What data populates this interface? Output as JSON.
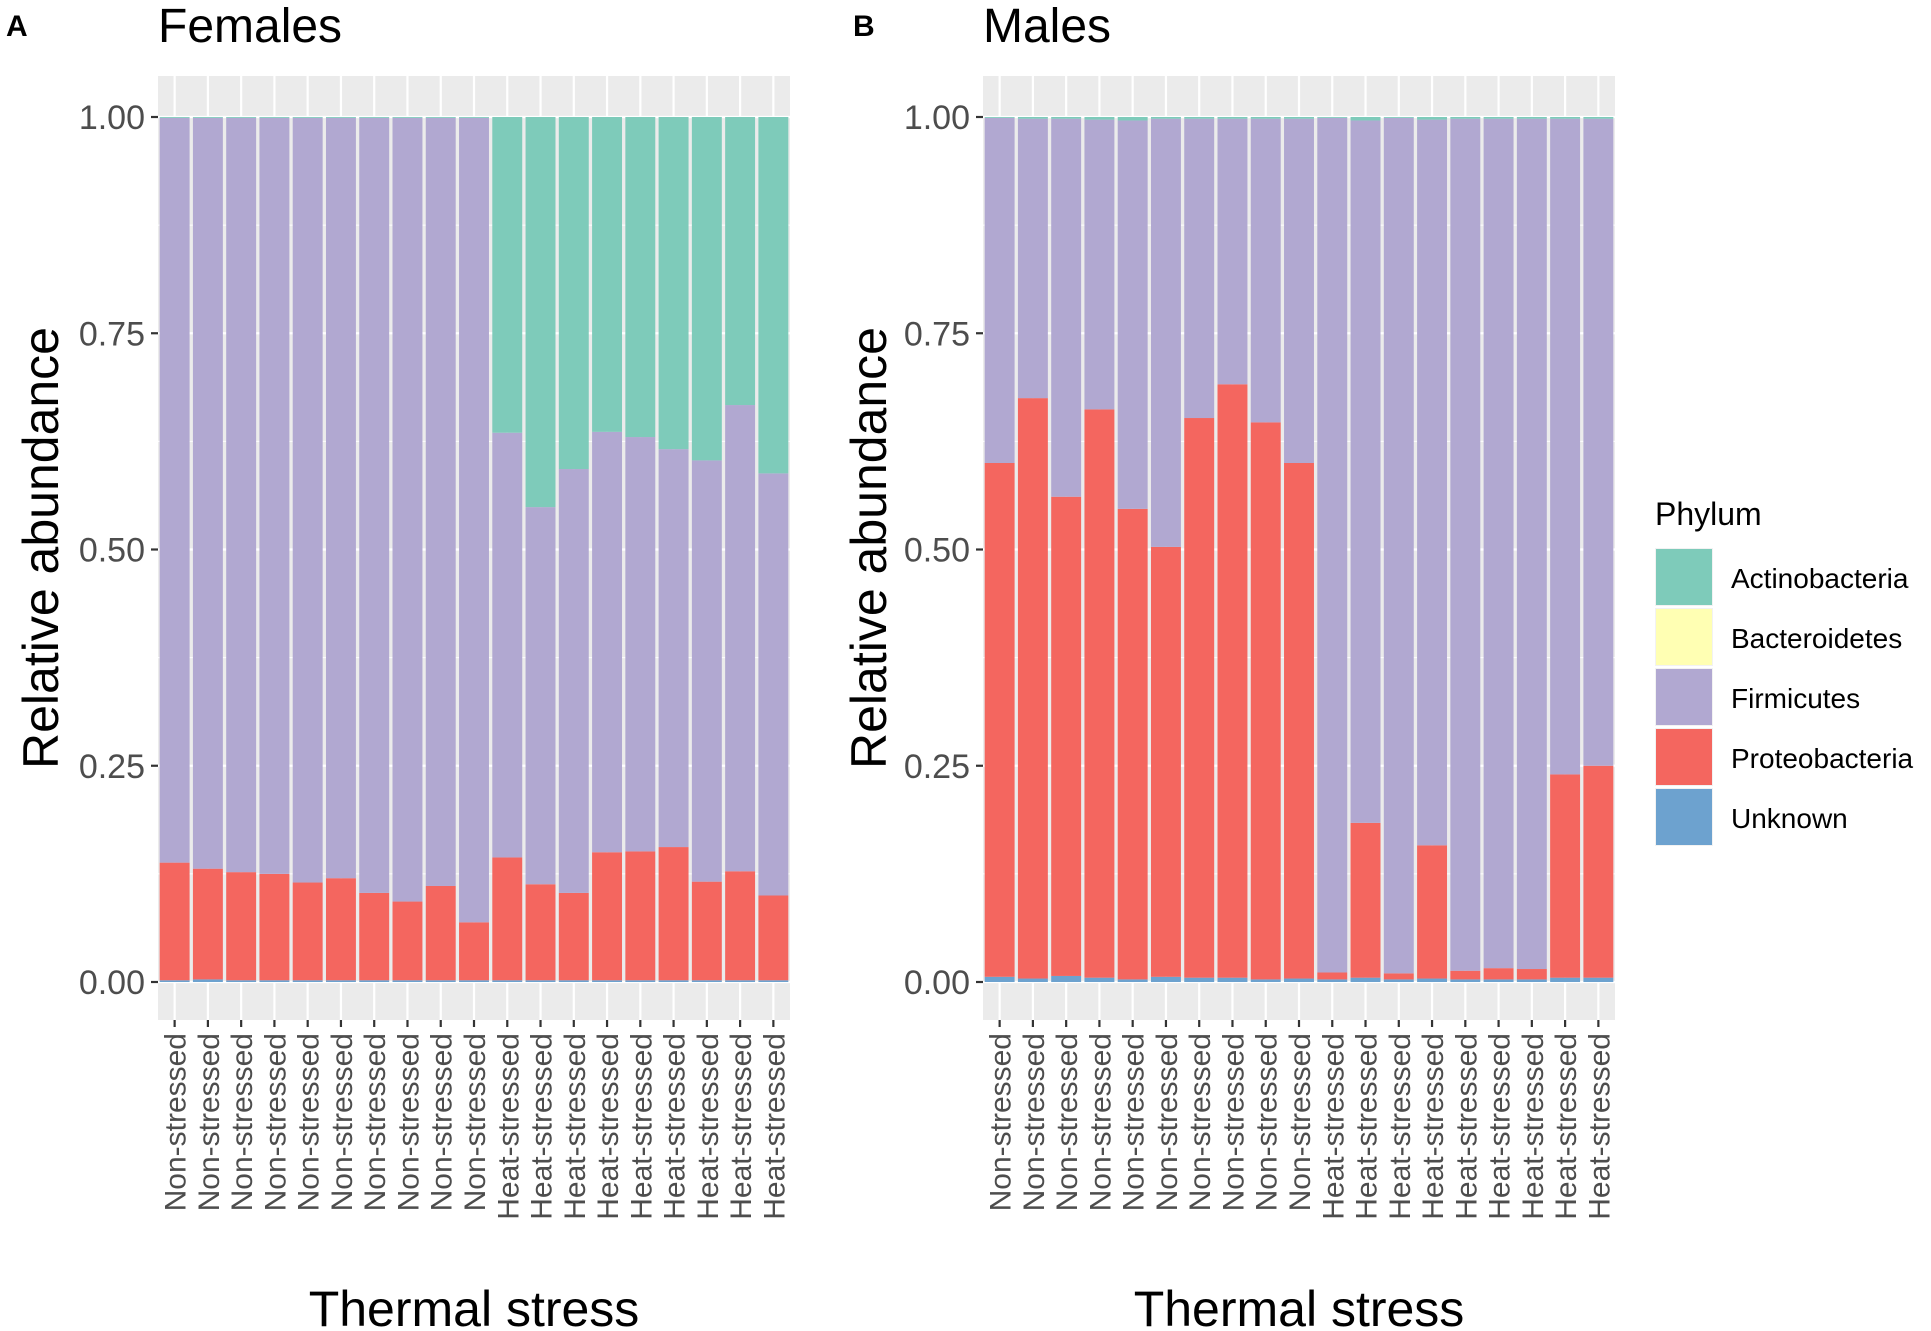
{
  "chart_data": [
    {
      "type": "bar",
      "stacked": true,
      "panel_label": "A",
      "title": "Females",
      "xlabel": "Thermal stress",
      "ylabel": "Relative abundance",
      "ylim": [
        0,
        1
      ],
      "yticks": [
        "0.00",
        "0.25",
        "0.50",
        "0.75",
        "1.00"
      ],
      "grid": true,
      "categories": [
        "Non-stressed",
        "Non-stressed",
        "Non-stressed",
        "Non-stressed",
        "Non-stressed",
        "Non-stressed",
        "Non-stressed",
        "Non-stressed",
        "Non-stressed",
        "Non-stressed",
        "Heat-stressed",
        "Heat-stressed",
        "Heat-stressed",
        "Heat-stressed",
        "Heat-stressed",
        "Heat-stressed",
        "Heat-stressed",
        "Heat-stressed",
        "Heat-stressed"
      ],
      "series": [
        {
          "name": "Unknown",
          "values": [
            0.002,
            0.003,
            0.002,
            0.002,
            0.002,
            0.002,
            0.002,
            0.002,
            0.002,
            0.002,
            0.002,
            0.002,
            0.002,
            0.002,
            0.002,
            0.002,
            0.002,
            0.002,
            0.002
          ]
        },
        {
          "name": "Proteobacteria",
          "values": [
            0.136,
            0.128,
            0.125,
            0.123,
            0.113,
            0.118,
            0.101,
            0.091,
            0.109,
            0.067,
            0.142,
            0.111,
            0.101,
            0.148,
            0.149,
            0.154,
            0.114,
            0.126,
            0.098
          ]
        },
        {
          "name": "Firmicutes",
          "values": [
            0.861,
            0.868,
            0.872,
            0.874,
            0.884,
            0.879,
            0.896,
            0.906,
            0.888,
            0.93,
            0.491,
            0.436,
            0.49,
            0.486,
            0.479,
            0.46,
            0.487,
            0.539,
            0.488
          ]
        },
        {
          "name": "Bacteroidetes",
          "values": [
            0,
            0,
            0,
            0,
            0,
            0,
            0,
            0,
            0,
            0,
            0,
            0,
            0,
            0,
            0,
            0,
            0,
            0,
            0
          ]
        },
        {
          "name": "Actinobacteria",
          "values": [
            0.001,
            0.001,
            0.001,
            0.001,
            0.001,
            0.001,
            0.001,
            0.001,
            0.001,
            0.001,
            0.365,
            0.451,
            0.407,
            0.364,
            0.37,
            0.384,
            0.397,
            0.333,
            0.412
          ]
        }
      ]
    },
    {
      "type": "bar",
      "stacked": true,
      "panel_label": "B",
      "title": "Males",
      "xlabel": "Thermal stress",
      "ylabel": "Relative abundance",
      "ylim": [
        0,
        1
      ],
      "yticks": [
        "0.00",
        "0.25",
        "0.50",
        "0.75",
        "1.00"
      ],
      "grid": true,
      "categories": [
        "Non-stressed",
        "Non-stressed",
        "Non-stressed",
        "Non-stressed",
        "Non-stressed",
        "Non-stressed",
        "Non-stressed",
        "Non-stressed",
        "Non-stressed",
        "Non-stressed",
        "Heat-stressed",
        "Heat-stressed",
        "Heat-stressed",
        "Heat-stressed",
        "Heat-stressed",
        "Heat-stressed",
        "Heat-stressed",
        "Heat-stressed",
        "Heat-stressed"
      ],
      "series": [
        {
          "name": "Unknown",
          "values": [
            0.006,
            0.004,
            0.007,
            0.005,
            0.003,
            0.006,
            0.005,
            0.005,
            0.003,
            0.004,
            0.003,
            0.005,
            0.003,
            0.004,
            0.003,
            0.003,
            0.003,
            0.005,
            0.005
          ]
        },
        {
          "name": "Proteobacteria",
          "values": [
            0.594,
            0.671,
            0.554,
            0.657,
            0.544,
            0.497,
            0.647,
            0.686,
            0.644,
            0.596,
            0.008,
            0.179,
            0.007,
            0.154,
            0.01,
            0.013,
            0.012,
            0.235,
            0.245
          ]
        },
        {
          "name": "Firmicutes",
          "values": [
            0.399,
            0.323,
            0.437,
            0.335,
            0.449,
            0.495,
            0.346,
            0.307,
            0.351,
            0.398,
            0.988,
            0.812,
            0.989,
            0.839,
            0.985,
            0.982,
            0.983,
            0.758,
            0.748
          ]
        },
        {
          "name": "Bacteroidetes",
          "values": [
            0,
            0,
            0,
            0,
            0,
            0,
            0,
            0,
            0,
            0,
            0,
            0,
            0,
            0,
            0,
            0,
            0,
            0,
            0
          ]
        },
        {
          "name": "Actinobacteria",
          "values": [
            0.001,
            0.002,
            0.002,
            0.003,
            0.004,
            0.002,
            0.002,
            0.002,
            0.002,
            0.002,
            0.001,
            0.004,
            0.001,
            0.003,
            0.002,
            0.002,
            0.002,
            0.002,
            0.002
          ]
        }
      ]
    }
  ],
  "legend": {
    "title": "Phylum",
    "placement": "right",
    "entries": [
      {
        "name": "Actinobacteria",
        "color": "#7ecbba"
      },
      {
        "name": "Bacteroidetes",
        "color": "#ffffb3"
      },
      {
        "name": "Firmicutes",
        "color": "#b1a8d1"
      },
      {
        "name": "Proteobacteria",
        "color": "#f4665f"
      },
      {
        "name": "Unknown",
        "color": "#6da2cf"
      }
    ]
  },
  "colors": {
    "panel_background": "#ebebeb",
    "grid": "#ffffff",
    "tick_text": "#4d4d4d",
    "label_text": "#000000"
  }
}
